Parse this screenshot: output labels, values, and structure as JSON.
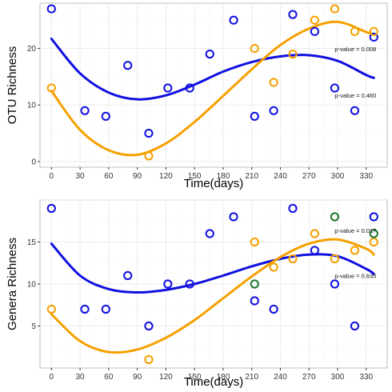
{
  "chart_data": [
    {
      "type": "scatter",
      "xlabel": "Time(days)",
      "ylabel": "OTU Richness",
      "xlim": [
        -12,
        352
      ],
      "ylim": [
        -1,
        28
      ],
      "x_ticks": [
        0,
        30,
        60,
        90,
        120,
        150,
        180,
        210,
        240,
        270,
        300,
        330
      ],
      "y_ticks": [
        0,
        10,
        20
      ],
      "grid": true,
      "series": [
        {
          "color": "#1010e0",
          "points": [
            [
              0,
              27
            ],
            [
              35,
              9
            ],
            [
              57,
              8
            ],
            [
              80,
              17
            ],
            [
              102,
              5
            ],
            [
              122,
              13
            ],
            [
              145,
              13
            ],
            [
              166,
              19
            ],
            [
              191,
              25
            ],
            [
              213,
              8
            ],
            [
              233,
              9
            ],
            [
              253,
              26
            ],
            [
              276,
              23
            ],
            [
              297,
              13
            ],
            [
              318,
              9
            ],
            [
              338,
              22
            ]
          ],
          "fit": [
            [
              0,
              21.7
            ],
            [
              30,
              15.6
            ],
            [
              60,
              12.2
            ],
            [
              90,
              11.0
            ],
            [
              120,
              11.7
            ],
            [
              150,
              13.6
            ],
            [
              180,
              15.9
            ],
            [
              210,
              17.6
            ],
            [
              240,
              18.6
            ],
            [
              270,
              18.8
            ],
            [
              300,
              17.8
            ],
            [
              330,
              15.3
            ],
            [
              338,
              14.8
            ]
          ]
        },
        {
          "color": "#f5a000",
          "points": [
            [
              0,
              13
            ],
            [
              102,
              1
            ],
            [
              213,
              20
            ],
            [
              233,
              14
            ],
            [
              253,
              19
            ],
            [
              276,
              25
            ],
            [
              297,
              27
            ],
            [
              318,
              23
            ],
            [
              338,
              23
            ]
          ],
          "fit": [
            [
              0,
              12.5
            ],
            [
              30,
              5.6
            ],
            [
              60,
              2.0
            ],
            [
              90,
              1.2
            ],
            [
              120,
              3.2
            ],
            [
              150,
              7.0
            ],
            [
              180,
              11.6
            ],
            [
              210,
              16.3
            ],
            [
              240,
              20.6
            ],
            [
              270,
              23.5
            ],
            [
              300,
              24.7
            ],
            [
              330,
              22.9
            ],
            [
              338,
              22.5
            ]
          ]
        }
      ],
      "annotations": [
        {
          "text": "p-value = 0.008",
          "x": 297,
          "y": 19.5
        },
        {
          "text": "p-value = 0.460",
          "x": 297,
          "y": 11.3
        }
      ]
    },
    {
      "type": "scatter",
      "xlabel": "Time(days)",
      "ylabel": "Genera Richness",
      "xlim": [
        -12,
        352
      ],
      "ylim": [
        0,
        20
      ],
      "x_ticks": [
        0,
        30,
        60,
        90,
        120,
        150,
        180,
        210,
        240,
        270,
        300,
        330
      ],
      "y_ticks": [
        5,
        10,
        15
      ],
      "grid": true,
      "series": [
        {
          "color": "#1010e0",
          "points": [
            [
              0,
              19
            ],
            [
              35,
              7
            ],
            [
              57,
              7
            ],
            [
              80,
              11
            ],
            [
              102,
              5
            ],
            [
              122,
              10
            ],
            [
              145,
              10
            ],
            [
              166,
              16
            ],
            [
              191,
              18
            ],
            [
              213,
              8
            ],
            [
              233,
              7
            ],
            [
              253,
              19
            ],
            [
              276,
              14
            ],
            [
              297,
              10
            ],
            [
              318,
              5
            ],
            [
              338,
              18
            ]
          ],
          "fit": [
            [
              0,
              14.8
            ],
            [
              30,
              11.0
            ],
            [
              60,
              9.4
            ],
            [
              90,
              9.0
            ],
            [
              120,
              9.3
            ],
            [
              150,
              10.0
            ],
            [
              180,
              11.0
            ],
            [
              210,
              12.1
            ],
            [
              240,
              13.0
            ],
            [
              270,
              13.5
            ],
            [
              300,
              13.3
            ],
            [
              330,
              11.8
            ],
            [
              338,
              11.2
            ]
          ]
        },
        {
          "color": "#f5a000",
          "points": [
            [
              0,
              7
            ],
            [
              102,
              1
            ],
            [
              213,
              15
            ],
            [
              233,
              12
            ],
            [
              253,
              13
            ],
            [
              276,
              16
            ],
            [
              297,
              13
            ],
            [
              318,
              14
            ],
            [
              338,
              15
            ]
          ],
          "fit": [
            [
              0,
              6.4
            ],
            [
              30,
              3.2
            ],
            [
              60,
              1.9
            ],
            [
              90,
              2.2
            ],
            [
              120,
              3.6
            ],
            [
              150,
              5.7
            ],
            [
              180,
              8.3
            ],
            [
              210,
              10.9
            ],
            [
              240,
              13.2
            ],
            [
              270,
              14.8
            ],
            [
              300,
              15.3
            ],
            [
              330,
              14.2
            ],
            [
              338,
              13.5
            ]
          ]
        },
        {
          "color": "#1b7a2e",
          "points": [
            [
              213,
              10
            ],
            [
              297,
              18
            ],
            [
              338,
              16
            ]
          ]
        }
      ],
      "annotations": [
        {
          "text": "p-value = 0.017",
          "x": 297,
          "y": 16.1
        },
        {
          "text": "p-value = 0.635",
          "x": 297,
          "y": 10.7
        }
      ]
    }
  ]
}
